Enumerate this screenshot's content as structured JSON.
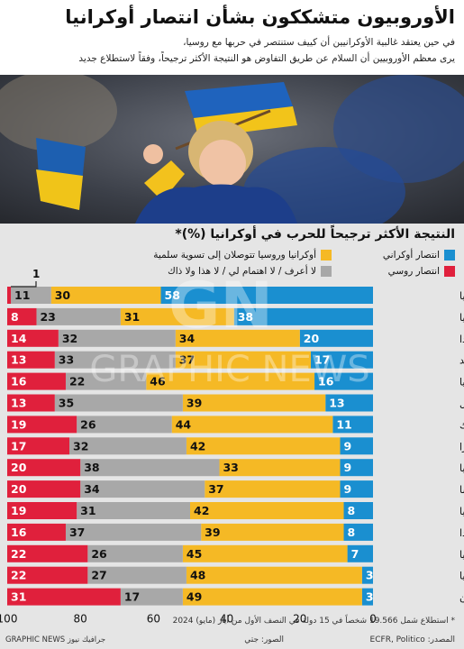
{
  "header": {
    "title": "الأوروبيون متشككون بشأن انتصار أوكرانيا",
    "subtitle_line1": "في حين يعتقد غالبية الأوكرانيين أن كييف ستنتصر في حربها مع روسيا،",
    "subtitle_line2": "يرى معظم الأوروبيين أن السلام عن طريق التفاوض هو النتيجة الأكثر ترجيحاً، وفقاً لاستطلاع جديد"
  },
  "chart_data": {
    "type": "bar",
    "title": "النتيجة الأكثر ترجيحاً للحرب في أوكرانيا (%)*",
    "categories": [
      "أوكرانيا",
      "إستونيا",
      "بولندا",
      "السويد",
      "بلغاريا",
      "البرتغال",
      "جمهورية التشيك",
      "سويسرا",
      "ألمانيا",
      "فرنسا",
      "بريطانيا",
      "هولندا",
      "إسبانيا",
      "إيطاليا",
      "اليونان"
    ],
    "series": [
      {
        "name": "انتصار أوكراني",
        "color": "#1a8fd0",
        "values": [
          58,
          38,
          20,
          17,
          16,
          13,
          11,
          9,
          9,
          9,
          8,
          8,
          7,
          3,
          3
        ]
      },
      {
        "name": "أوكرانيا وروسيا تتوصلان إلى تسوية سلمية",
        "color": "#f5b925",
        "values": [
          30,
          31,
          34,
          37,
          46,
          39,
          44,
          42,
          33,
          37,
          42,
          39,
          45,
          48,
          49
        ]
      },
      {
        "name": "لا أعرف / لا اهتمام لي / لا هذا ولا ذاك",
        "color": "#a8a8a8",
        "values": [
          11,
          23,
          32,
          33,
          22,
          35,
          26,
          32,
          38,
          34,
          31,
          37,
          26,
          27,
          17
        ]
      },
      {
        "name": "انتصار روسي",
        "color": "#e0203c",
        "values": [
          1,
          8,
          14,
          13,
          16,
          13,
          19,
          17,
          20,
          20,
          19,
          16,
          22,
          22,
          31
        ]
      }
    ],
    "x_ticks": [
      "100",
      "80",
      "60",
      "40",
      "20",
      "0"
    ],
    "xlim": [
      0,
      100
    ],
    "annotation": "1"
  },
  "footer": {
    "note": "* استطلاع شمل 19.566 شخصاً في 15 دولة في النصف الأول من أيار (مايو) 2024",
    "source": "المصدر: ECFR, Politico",
    "photo_credit": "الصور: جتي",
    "brand": "GRAPHIC NEWS جرافيك نيوز"
  },
  "watermark": {
    "mark": "GN",
    "text": "GRAPHIC NEWS"
  }
}
